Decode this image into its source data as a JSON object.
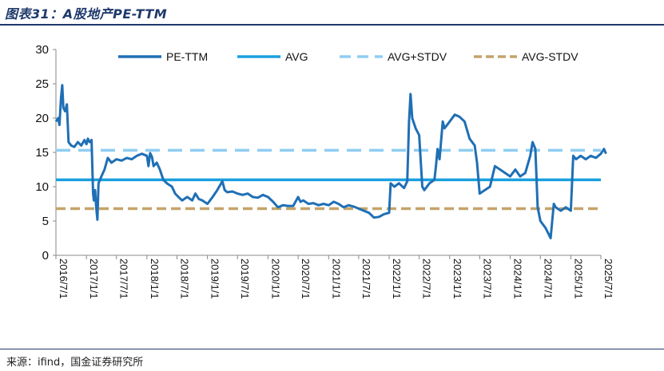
{
  "header": {
    "title": "图表31：A股地产PE-TTM"
  },
  "footer": {
    "source": "来源：ifind，国金证券研究所"
  },
  "colors": {
    "pe": "#1f6fb5",
    "avg": "#1aa0e0",
    "avg_plus": "#8fcdf2",
    "avg_minus": "#c4a468",
    "axis": "#888888",
    "rule": "#1f3a6b"
  },
  "chart_data": {
    "type": "line",
    "title": "",
    "xlabel": "",
    "ylabel": "",
    "ylim": [
      0,
      30
    ],
    "yticks": [
      0,
      5,
      10,
      15,
      20,
      25,
      30
    ],
    "xticks": [
      "2016/7/1",
      "2017/1/1",
      "2017/7/1",
      "2018/1/1",
      "2018/7/1",
      "2019/1/1",
      "2019/7/1",
      "2020/1/1",
      "2020/7/1",
      "2021/1/1",
      "2021/7/1",
      "2022/1/1",
      "2022/7/1",
      "2023/1/1",
      "2023/7/1",
      "2024/1/1",
      "2024/7/1",
      "2025/1/1",
      "2025/7/1"
    ],
    "grid": false,
    "legend_position": "top",
    "series": [
      {
        "name": "PE-TTM",
        "style": "solid-thick",
        "points": [
          [
            "2016/7/1",
            19.5
          ],
          [
            "2016/7/15",
            20.0
          ],
          [
            "2016/7/22",
            19.0
          ],
          [
            "2016/8/1",
            23.0
          ],
          [
            "2016/8/8",
            24.8
          ],
          [
            "2016/8/15",
            21.5
          ],
          [
            "2016/8/25",
            21.0
          ],
          [
            "2016/9/5",
            22.0
          ],
          [
            "2016/9/15",
            16.5
          ],
          [
            "2016/10/1",
            16.0
          ],
          [
            "2016/10/20",
            15.8
          ],
          [
            "2016/11/10",
            16.5
          ],
          [
            "2016/12/1",
            16.0
          ],
          [
            "2016/12/20",
            16.8
          ],
          [
            "2017/1/1",
            16.2
          ],
          [
            "2017/1/10",
            17.0
          ],
          [
            "2017/1/20",
            16.5
          ],
          [
            "2017/2/1",
            16.8
          ],
          [
            "2017/2/10",
            9.0
          ],
          [
            "2017/2/15",
            8.0
          ],
          [
            "2017/2/22",
            9.5
          ],
          [
            "2017/3/1",
            7.0
          ],
          [
            "2017/3/8",
            5.2
          ],
          [
            "2017/3/15",
            10.5
          ],
          [
            "2017/4/1",
            11.5
          ],
          [
            "2017/4/20",
            12.5
          ],
          [
            "2017/5/10",
            14.2
          ],
          [
            "2017/6/1",
            13.5
          ],
          [
            "2017/7/1",
            14.0
          ],
          [
            "2017/8/1",
            13.8
          ],
          [
            "2017/9/1",
            14.2
          ],
          [
            "2017/10/1",
            14.0
          ],
          [
            "2017/11/1",
            14.5
          ],
          [
            "2017/12/1",
            14.8
          ],
          [
            "2018/1/1",
            14.5
          ],
          [
            "2018/1/10",
            13.0
          ],
          [
            "2018/1/20",
            14.9
          ],
          [
            "2018/2/1",
            14.3
          ],
          [
            "2018/2/10",
            13.0
          ],
          [
            "2018/3/1",
            13.5
          ],
          [
            "2018/3/20",
            12.5
          ],
          [
            "2018/4/10",
            11.0
          ],
          [
            "2018/5/1",
            10.5
          ],
          [
            "2018/6/1",
            10.0
          ],
          [
            "2018/6/20",
            9.0
          ],
          [
            "2018/7/10",
            8.5
          ],
          [
            "2018/8/1",
            8.0
          ],
          [
            "2018/9/1",
            8.5
          ],
          [
            "2018/10/1",
            8.0
          ],
          [
            "2018/10/20",
            9.0
          ],
          [
            "2018/11/10",
            8.2
          ],
          [
            "2018/12/1",
            8.0
          ],
          [
            "2019/1/1",
            7.5
          ],
          [
            "2019/2/1",
            8.5
          ],
          [
            "2019/3/1",
            9.5
          ],
          [
            "2019/4/1",
            10.8
          ],
          [
            "2019/4/15",
            9.5
          ],
          [
            "2019/5/1",
            9.2
          ],
          [
            "2019/6/1",
            9.3
          ],
          [
            "2019/7/1",
            9.0
          ],
          [
            "2019/8/1",
            8.8
          ],
          [
            "2019/9/1",
            9.0
          ],
          [
            "2019/10/1",
            8.5
          ],
          [
            "2019/11/1",
            8.4
          ],
          [
            "2019/12/1",
            8.8
          ],
          [
            "2020/1/1",
            8.5
          ],
          [
            "2020/2/1",
            7.8
          ],
          [
            "2020/3/1",
            7.0
          ],
          [
            "2020/4/1",
            7.3
          ],
          [
            "2020/5/1",
            7.2
          ],
          [
            "2020/6/1",
            7.2
          ],
          [
            "2020/7/1",
            8.5
          ],
          [
            "2020/7/15",
            7.8
          ],
          [
            "2020/8/1",
            8.0
          ],
          [
            "2020/9/1",
            7.5
          ],
          [
            "2020/10/1",
            7.6
          ],
          [
            "2020/11/1",
            7.3
          ],
          [
            "2020/12/1",
            7.5
          ],
          [
            "2021/1/1",
            7.3
          ],
          [
            "2021/2/1",
            7.8
          ],
          [
            "2021/3/1",
            7.5
          ],
          [
            "2021/4/1",
            7.0
          ],
          [
            "2021/5/1",
            7.3
          ],
          [
            "2021/6/1",
            7.1
          ],
          [
            "2021/7/1",
            6.8
          ],
          [
            "2021/8/1",
            6.5
          ],
          [
            "2021/9/1",
            6.2
          ],
          [
            "2021/10/1",
            5.5
          ],
          [
            "2021/11/1",
            5.6
          ],
          [
            "2021/12/1",
            6.0
          ],
          [
            "2022/1/1",
            6.2
          ],
          [
            "2022/1/10",
            10.5
          ],
          [
            "2022/2/1",
            10.0
          ],
          [
            "2022/3/1",
            10.5
          ],
          [
            "2022/4/1",
            9.8
          ],
          [
            "2022/4/20",
            10.8
          ],
          [
            "2022/5/1",
            19.5
          ],
          [
            "2022/5/10",
            23.5
          ],
          [
            "2022/5/20",
            20.0
          ],
          [
            "2022/6/10",
            18.5
          ],
          [
            "2022/7/1",
            17.5
          ],
          [
            "2022/7/20",
            10.0
          ],
          [
            "2022/8/1",
            9.5
          ],
          [
            "2022/9/1",
            10.5
          ],
          [
            "2022/10/1",
            11.0
          ],
          [
            "2022/10/10",
            13.0
          ],
          [
            "2022/10/20",
            15.5
          ],
          [
            "2022/11/1",
            14.0
          ],
          [
            "2022/11/20",
            19.5
          ],
          [
            "2022/12/1",
            18.5
          ],
          [
            "2023/1/1",
            19.5
          ],
          [
            "2023/2/1",
            20.5
          ],
          [
            "2023/3/1",
            20.2
          ],
          [
            "2023/4/1",
            19.5
          ],
          [
            "2023/5/1",
            17.0
          ],
          [
            "2023/6/1",
            16.0
          ],
          [
            "2023/6/15",
            13.5
          ],
          [
            "2023/7/1",
            9.0
          ],
          [
            "2023/8/1",
            9.5
          ],
          [
            "2023/9/1",
            10.0
          ],
          [
            "2023/10/1",
            13.0
          ],
          [
            "2023/11/1",
            12.5
          ],
          [
            "2023/12/1",
            12.0
          ],
          [
            "2024/1/1",
            11.5
          ],
          [
            "2024/2/1",
            12.5
          ],
          [
            "2024/3/1",
            11.5
          ],
          [
            "2024/4/1",
            12.0
          ],
          [
            "2024/5/1",
            14.5
          ],
          [
            "2024/5/15",
            16.5
          ],
          [
            "2024/6/1",
            15.5
          ],
          [
            "2024/6/15",
            7.0
          ],
          [
            "2024/7/1",
            5.0
          ],
          [
            "2024/8/1",
            4.0
          ],
          [
            "2024/9/1",
            2.5
          ],
          [
            "2024/9/20",
            7.5
          ],
          [
            "2024/10/1",
            7.0
          ],
          [
            "2024/11/1",
            6.5
          ],
          [
            "2024/12/1",
            7.0
          ],
          [
            "2025/1/1",
            6.5
          ],
          [
            "2025/1/15",
            14.5
          ],
          [
            "2025/2/1",
            14.0
          ],
          [
            "2025/3/1",
            14.5
          ],
          [
            "2025/4/1",
            14.0
          ],
          [
            "2025/5/1",
            14.5
          ],
          [
            "2025/6/1",
            14.2
          ],
          [
            "2025/7/1",
            14.8
          ],
          [
            "2025/7/20",
            15.5
          ],
          [
            "2025/8/1",
            14.8
          ]
        ]
      },
      {
        "name": "AVG",
        "style": "solid",
        "value": 11.0
      },
      {
        "name": "AVG+STDV",
        "style": "dashed",
        "value": 15.3
      },
      {
        "name": "AVG-STDV",
        "style": "dashed",
        "value": 6.8
      }
    ]
  }
}
